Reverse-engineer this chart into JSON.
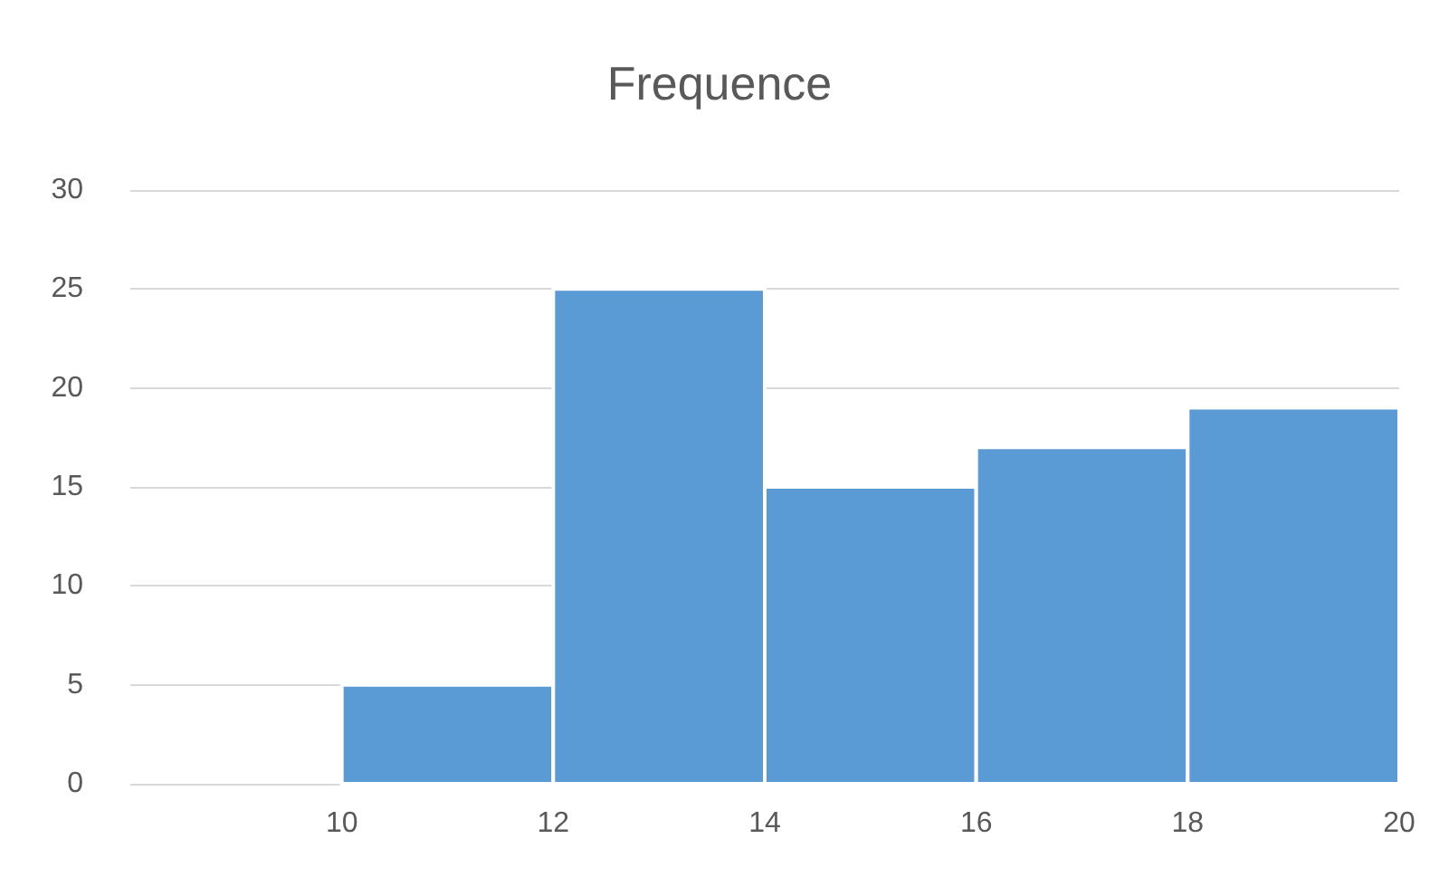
{
  "chart_data": {
    "type": "histogram",
    "title": "Frequence",
    "bins": [
      8,
      10,
      12,
      14,
      16,
      18,
      20
    ],
    "values": [
      0,
      5,
      25,
      15,
      17,
      19
    ],
    "color": "#5b9bd5",
    "xlim": [
      8,
      20
    ],
    "xticks": [
      10,
      12,
      14,
      16,
      18,
      20
    ],
    "ylim": [
      0,
      30
    ],
    "yticks": [
      0,
      5,
      10,
      15,
      20,
      25,
      30
    ],
    "grid": "y"
  }
}
